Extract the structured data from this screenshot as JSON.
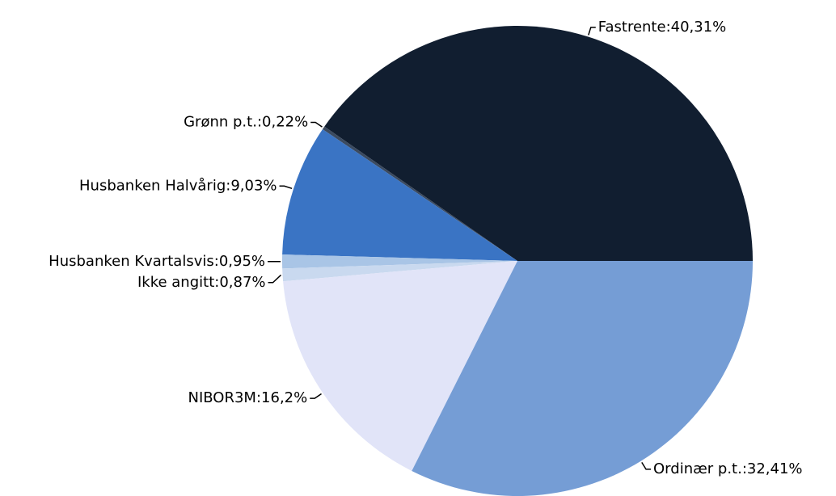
{
  "chart_data": {
    "type": "pie",
    "categories": [
      "Fastrente",
      "Grønn p.t.",
      "Husbanken Halvårig",
      "Husbanken Kvartalsvis",
      "Ikke angitt",
      "NIBOR3M",
      "Ordinær p.t."
    ],
    "separator": ":",
    "values": [
      40.31,
      0.22,
      9.03,
      0.95,
      0.87,
      16.2,
      32.41
    ],
    "value_labels": [
      "40,31%",
      "0,22%",
      "9,03%",
      "0,95%",
      "0,87%",
      "16,2%",
      "32,41%"
    ],
    "colors": [
      "#111e30",
      "#3b4a5f",
      "#3a74c4",
      "#a9c5e6",
      "#c9d9ef",
      "#e1e4f8",
      "#759dd5"
    ]
  }
}
